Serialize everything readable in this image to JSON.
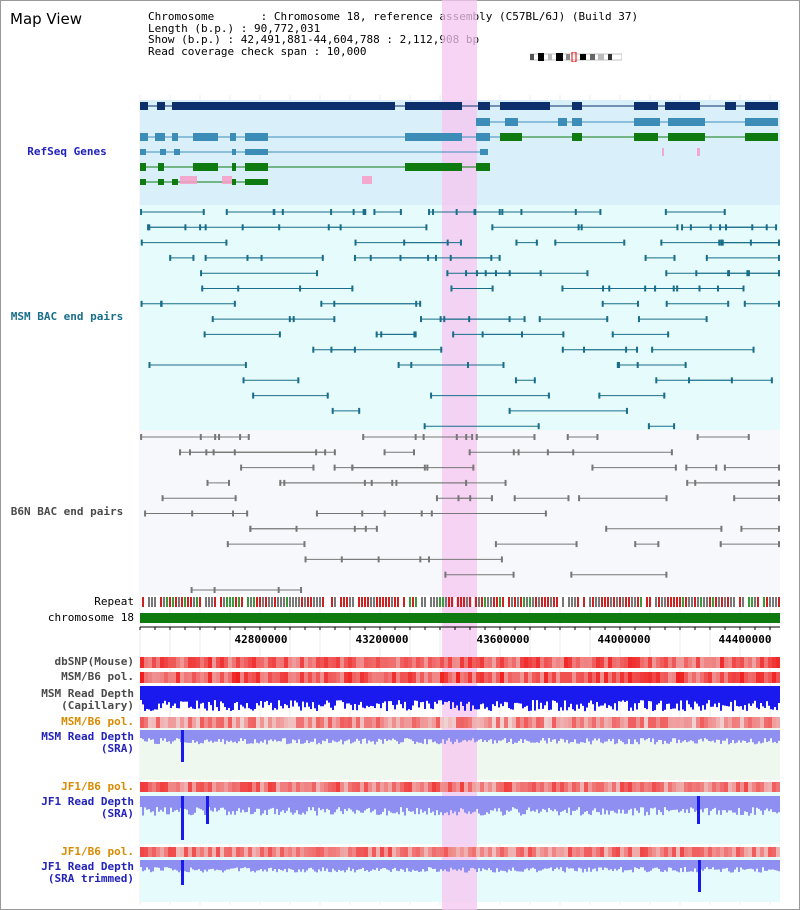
{
  "page": {
    "title": "Map View"
  },
  "info": {
    "chromosome_line": "Chromosome       : Chromosome 18, reference assembly (C57BL/6J) (Build 37)",
    "length_line": "Length (b.p.) : 90,772,031",
    "show_line": "Show (b.p.) : 42,491,881-44,604,788 : 2,112,908 bp",
    "span_line": "Read coverage check span : 10,000"
  },
  "tracks": {
    "refseq": "RefSeq Genes",
    "msm_bac": "MSM BAC end pairs",
    "b6n_bac": "B6N BAC end pairs",
    "repeat": "Repeat",
    "chromosome": "chromosome 18",
    "dbsnp": "dbSNP(Mouse)",
    "msm_b6_pol_1": "MSM/B6 pol.",
    "msm_read_depth_cap_1": "MSM Read Depth",
    "msm_read_depth_cap_2": "(Capillary)",
    "msm_b6_pol_2": "MSM/B6 pol.",
    "msm_read_depth_sra_1": "MSM Read Depth",
    "msm_read_depth_sra_2": "(SRA)",
    "jf1_b6_pol_1": "JF1/B6 pol.",
    "jf1_read_depth_1": "JF1 Read Depth",
    "jf1_read_depth_2": "(SRA)",
    "jf1_b6_pol_2": "JF1/B6 pol.",
    "jf1_read_depth_trim_1": "JF1 Read Depth",
    "jf1_read_depth_trim_2": "(SRA trimmed)"
  },
  "axis": {
    "ticks": [
      "42800000",
      "43200000",
      "43600000",
      "44000000",
      "44400000"
    ]
  },
  "colors": {
    "highlight": "#f6c6f0",
    "refseq_bg": "#d9f0fb",
    "bac_bg": "#e6fbfb",
    "gene_dark": "#0d2f6b",
    "gene_mid": "#3b8db8",
    "gene_green": "#0f7a0f",
    "chromosome": "#0f7a0f",
    "depth_blue": "#1a1aee",
    "depth_light": "#8f8ff2"
  }
}
